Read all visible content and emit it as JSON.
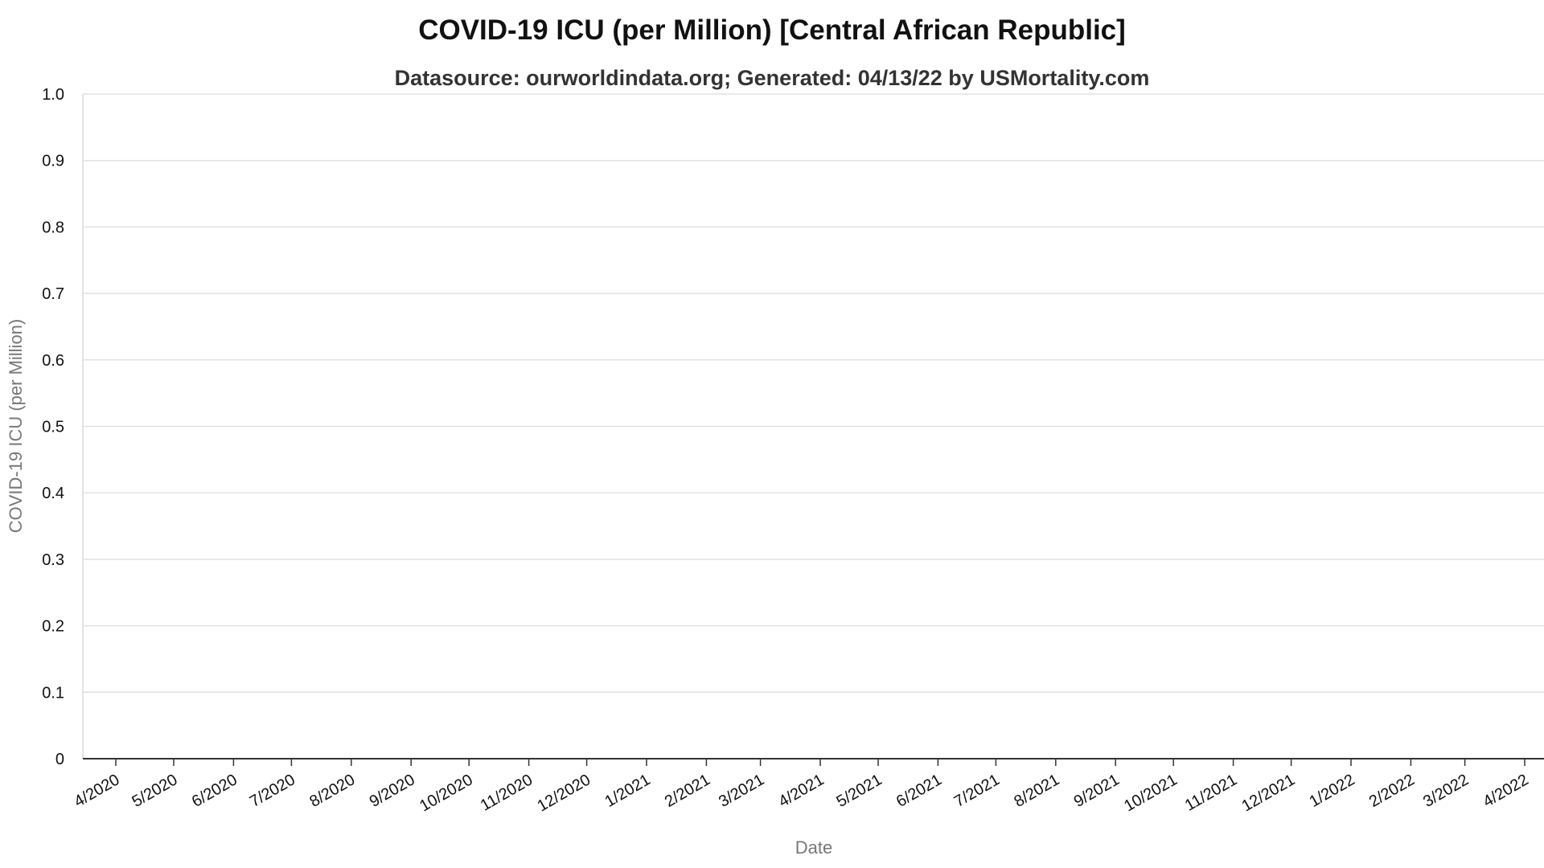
{
  "chart_data": {
    "type": "line",
    "title": "COVID-19 ICU (per Million) [Central African Republic]",
    "subtitle": "Datasource: ourworldindata.org; Generated: 04/13/22 by USMortality.com",
    "xlabel": "Date",
    "ylabel": "COVID-19 ICU (per Million)",
    "ylim": [
      0,
      1.0
    ],
    "yticks": [
      "0",
      "0.1",
      "0.2",
      "0.3",
      "0.4",
      "0.5",
      "0.6",
      "0.7",
      "0.8",
      "0.9",
      "1.0"
    ],
    "xticks": [
      "4/2020",
      "5/2020",
      "6/2020",
      "7/2020",
      "8/2020",
      "9/2020",
      "10/2020",
      "11/2020",
      "12/2020",
      "1/2021",
      "2/2021",
      "3/2021",
      "4/2021",
      "5/2021",
      "6/2021",
      "7/2021",
      "8/2021",
      "9/2021",
      "10/2021",
      "11/2021",
      "12/2021",
      "1/2022",
      "2/2022",
      "3/2022",
      "4/2022"
    ],
    "grid": true,
    "series": []
  }
}
